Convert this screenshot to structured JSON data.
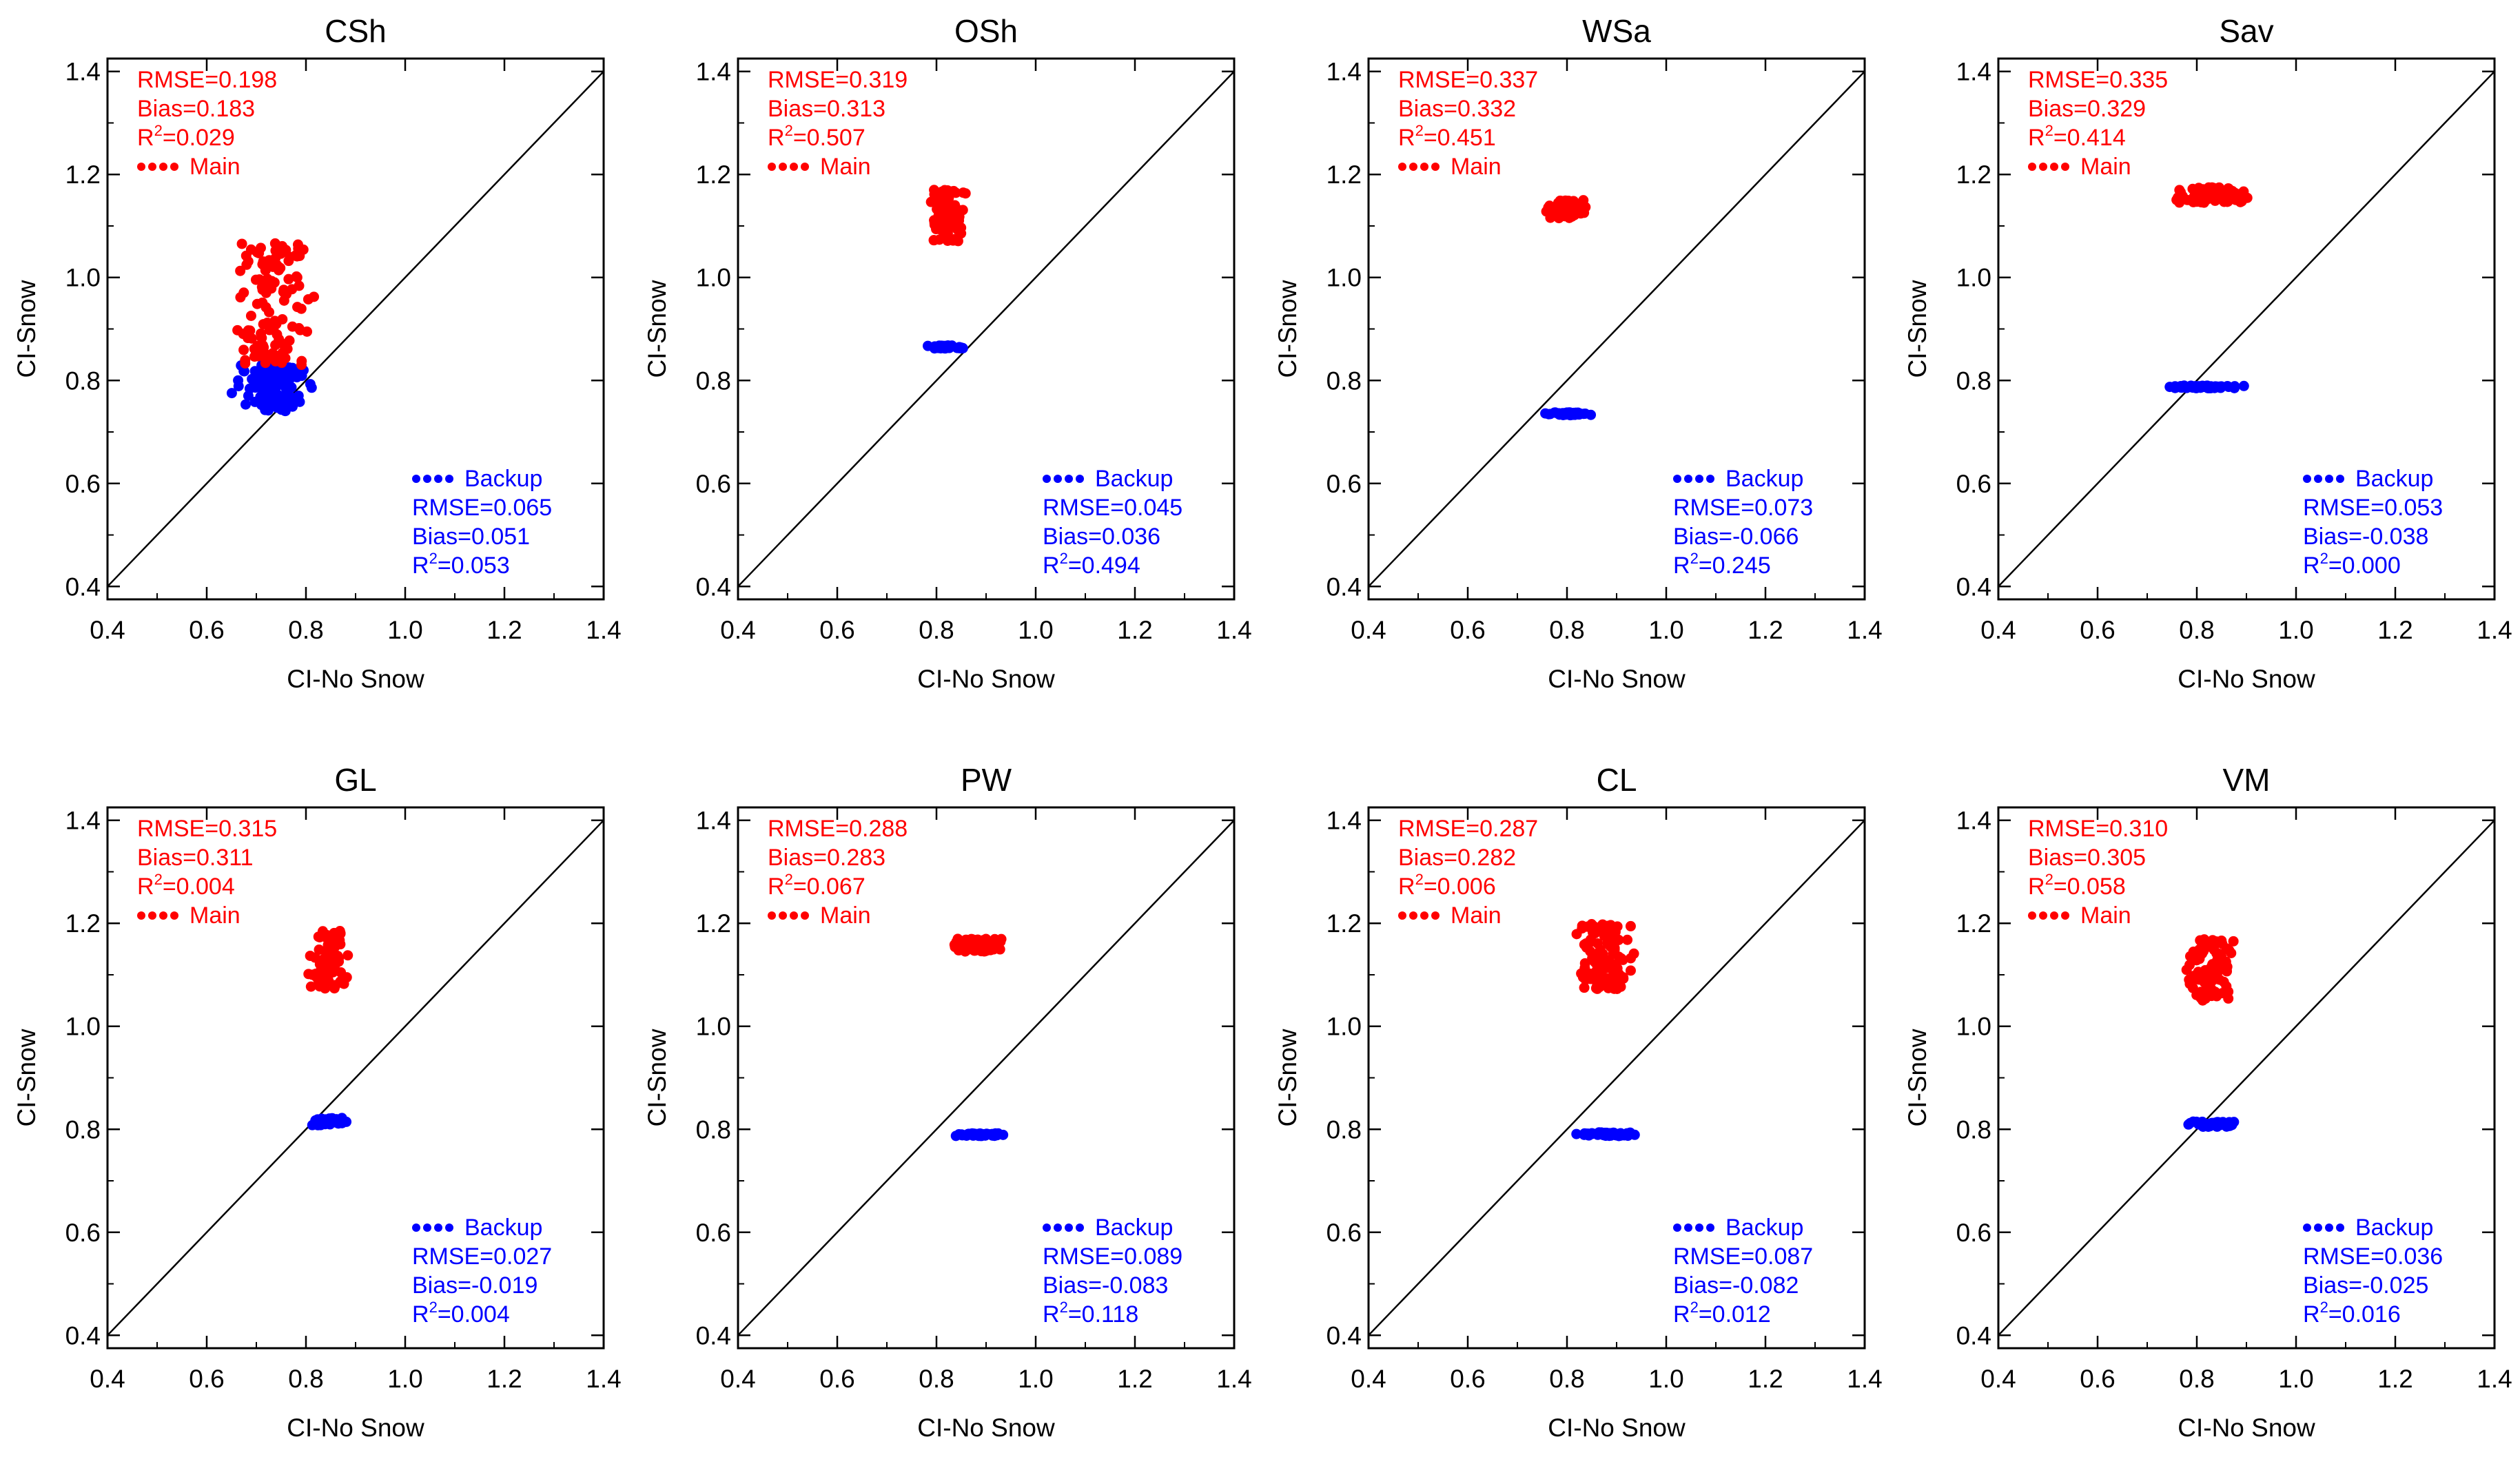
{
  "figure": {
    "xlabel": "CI-No Snow",
    "ylabel": "CI-Snow",
    "colors": {
      "main": "#ff0000",
      "backup": "#0000ff",
      "axis": "#000000"
    }
  },
  "chart_data": [
    {
      "type": "scatter",
      "title": "CSh",
      "xlabel": "CI-No Snow",
      "ylabel": "CI-Snow",
      "xlim": [
        0.4,
        1.4
      ],
      "ylim": [
        0.375,
        1.425
      ],
      "xticks": [
        "0.4",
        "0.6",
        "0.8",
        "1.0",
        "1.2",
        "1.4"
      ],
      "yticks": [
        "0.4",
        "0.6",
        "0.8",
        "1.0",
        "1.2",
        "1.4"
      ],
      "identity_line": true,
      "main": {
        "label": "Main",
        "rmse": "RMSE=0.198",
        "bias": "Bias=0.183",
        "r2": "0.029",
        "x_range": [
          0.65,
          0.82
        ],
        "y_range": [
          0.83,
          1.07
        ],
        "n": 120
      },
      "backup": {
        "label": "Backup",
        "rmse": "RMSE=0.065",
        "bias": "Bias=0.051",
        "r2": "0.053",
        "x_range": [
          0.65,
          0.82
        ],
        "y_range": [
          0.74,
          0.83
        ],
        "n": 110
      }
    },
    {
      "type": "scatter",
      "title": "OSh",
      "xlabel": "CI-No Snow",
      "ylabel": "CI-Snow",
      "xlim": [
        0.4,
        1.4
      ],
      "ylim": [
        0.375,
        1.425
      ],
      "xticks": [
        "0.4",
        "0.6",
        "0.8",
        "1.0",
        "1.2",
        "1.4"
      ],
      "yticks": [
        "0.4",
        "0.6",
        "0.8",
        "1.0",
        "1.2",
        "1.4"
      ],
      "identity_line": true,
      "main": {
        "label": "Main",
        "rmse": "RMSE=0.319",
        "bias": "Bias=0.313",
        "r2": "0.507",
        "x_range": [
          0.78,
          0.86
        ],
        "y_range": [
          1.07,
          1.17
        ],
        "n": 80
      },
      "backup": {
        "label": "Backup",
        "rmse": "RMSE=0.045",
        "bias": "Bias=0.036",
        "r2": "0.494",
        "x_range": [
          0.78,
          0.86
        ],
        "y_range": [
          0.862,
          0.868
        ],
        "n": 45
      }
    },
    {
      "type": "scatter",
      "title": "WSa",
      "xlabel": "CI-No Snow",
      "ylabel": "CI-Snow",
      "xlim": [
        0.4,
        1.4
      ],
      "ylim": [
        0.375,
        1.425
      ],
      "xticks": [
        "0.4",
        "0.6",
        "0.8",
        "1.0",
        "1.2",
        "1.4"
      ],
      "yticks": [
        "0.4",
        "0.6",
        "0.8",
        "1.0",
        "1.2",
        "1.4"
      ],
      "identity_line": true,
      "main": {
        "label": "Main",
        "rmse": "RMSE=0.337",
        "bias": "Bias=0.332",
        "r2": "0.451",
        "x_range": [
          0.75,
          0.85
        ],
        "y_range": [
          1.115,
          1.15
        ],
        "n": 70
      },
      "backup": {
        "label": "Backup",
        "rmse": "RMSE=0.073",
        "bias": "Bias=-0.066",
        "r2": "0.245",
        "x_range": [
          0.75,
          0.85
        ],
        "y_range": [
          0.732,
          0.738
        ],
        "n": 45
      }
    },
    {
      "type": "scatter",
      "title": "Sav",
      "xlabel": "CI-No Snow",
      "ylabel": "CI-Snow",
      "xlim": [
        0.4,
        1.4
      ],
      "ylim": [
        0.375,
        1.425
      ],
      "xticks": [
        "0.4",
        "0.6",
        "0.8",
        "1.0",
        "1.2",
        "1.4"
      ],
      "yticks": [
        "0.4",
        "0.6",
        "0.8",
        "1.0",
        "1.2",
        "1.4"
      ],
      "identity_line": true,
      "main": {
        "label": "Main",
        "rmse": "RMSE=0.335",
        "bias": "Bias=0.329",
        "r2": "0.414",
        "x_range": [
          0.75,
          0.91
        ],
        "y_range": [
          1.145,
          1.175
        ],
        "n": 90
      },
      "backup": {
        "label": "Backup",
        "rmse": "RMSE=0.053",
        "bias": "Bias=-0.038",
        "r2": "0.000",
        "x_range": [
          0.74,
          0.91
        ],
        "y_range": [
          0.785,
          0.79
        ],
        "n": 55
      }
    },
    {
      "type": "scatter",
      "title": "GL",
      "xlabel": "CI-No Snow",
      "ylabel": "CI-Snow",
      "xlim": [
        0.4,
        1.4
      ],
      "ylim": [
        0.375,
        1.425
      ],
      "xticks": [
        "0.4",
        "0.6",
        "0.8",
        "1.0",
        "1.2",
        "1.4"
      ],
      "yticks": [
        "0.4",
        "0.6",
        "0.8",
        "1.0",
        "1.2",
        "1.4"
      ],
      "identity_line": true,
      "main": {
        "label": "Main",
        "rmse": "RMSE=0.315",
        "bias": "Bias=0.311",
        "r2": "0.004",
        "x_range": [
          0.8,
          0.89
        ],
        "y_range": [
          1.07,
          1.185
        ],
        "n": 80
      },
      "backup": {
        "label": "Backup",
        "rmse": "RMSE=0.027",
        "bias": "Bias=-0.019",
        "r2": "0.004",
        "x_range": [
          0.8,
          0.89
        ],
        "y_range": [
          0.808,
          0.822
        ],
        "n": 40
      }
    },
    {
      "type": "scatter",
      "title": "PW",
      "xlabel": "CI-No Snow",
      "ylabel": "CI-Snow",
      "xlim": [
        0.4,
        1.4
      ],
      "ylim": [
        0.375,
        1.425
      ],
      "xticks": [
        "0.4",
        "0.6",
        "0.8",
        "1.0",
        "1.2",
        "1.4"
      ],
      "yticks": [
        "0.4",
        "0.6",
        "0.8",
        "1.0",
        "1.2",
        "1.4"
      ],
      "identity_line": true,
      "main": {
        "label": "Main",
        "rmse": "RMSE=0.288",
        "bias": "Bias=0.283",
        "r2": "0.067",
        "x_range": [
          0.83,
          0.94
        ],
        "y_range": [
          1.145,
          1.17
        ],
        "n": 80
      },
      "backup": {
        "label": "Backup",
        "rmse": "RMSE=0.089",
        "bias": "Bias=-0.083",
        "r2": "0.118",
        "x_range": [
          0.83,
          0.94
        ],
        "y_range": [
          0.787,
          0.792
        ],
        "n": 50
      }
    },
    {
      "type": "scatter",
      "title": "CL",
      "xlabel": "CI-No Snow",
      "ylabel": "CI-Snow",
      "xlim": [
        0.4,
        1.4
      ],
      "ylim": [
        0.375,
        1.425
      ],
      "xticks": [
        "0.4",
        "0.6",
        "0.8",
        "1.0",
        "1.2",
        "1.4"
      ],
      "yticks": [
        "0.4",
        "0.6",
        "0.8",
        "1.0",
        "1.2",
        "1.4"
      ],
      "identity_line": true,
      "main": {
        "label": "Main",
        "rmse": "RMSE=0.287",
        "bias": "Bias=0.282",
        "r2": "0.006",
        "x_range": [
          0.81,
          0.94
        ],
        "y_range": [
          1.07,
          1.2
        ],
        "n": 120
      },
      "backup": {
        "label": "Backup",
        "rmse": "RMSE=0.087",
        "bias": "Bias=-0.082",
        "r2": "0.012",
        "x_range": [
          0.81,
          0.94
        ],
        "y_range": [
          0.787,
          0.794
        ],
        "n": 50
      }
    },
    {
      "type": "scatter",
      "title": "VM",
      "xlabel": "CI-No Snow",
      "ylabel": "CI-Snow",
      "xlim": [
        0.4,
        1.4
      ],
      "ylim": [
        0.375,
        1.425
      ],
      "xticks": [
        "0.4",
        "0.6",
        "0.8",
        "1.0",
        "1.2",
        "1.4"
      ],
      "yticks": [
        "0.4",
        "0.6",
        "0.8",
        "1.0",
        "1.2",
        "1.4"
      ],
      "identity_line": true,
      "main": {
        "label": "Main",
        "rmse": "RMSE=0.310",
        "bias": "Bias=0.305",
        "r2": "0.058",
        "x_range": [
          0.77,
          0.88
        ],
        "y_range": [
          1.05,
          1.17
        ],
        "n": 90
      },
      "backup": {
        "label": "Backup",
        "rmse": "RMSE=0.036",
        "bias": "Bias=-0.025",
        "r2": "0.016",
        "x_range": [
          0.77,
          0.88
        ],
        "y_range": [
          0.805,
          0.815
        ],
        "n": 45
      }
    }
  ]
}
